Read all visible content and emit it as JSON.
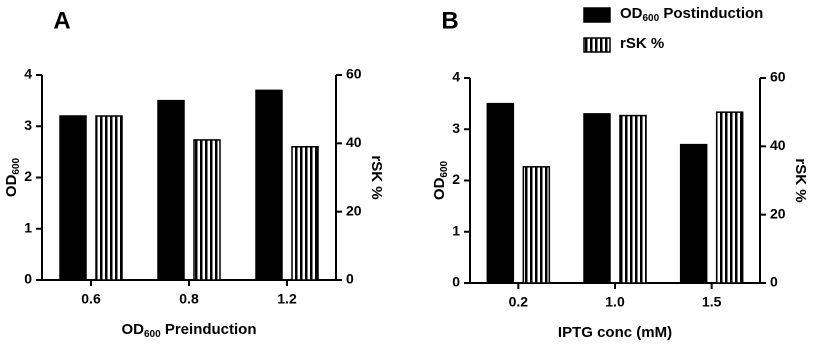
{
  "chart_data": [
    {
      "type": "bar",
      "panel": "A",
      "categories": [
        "0.6",
        "0.8",
        "1.2"
      ],
      "xlabel": [
        "OD",
        "600",
        " Preinduction"
      ],
      "ylabel": [
        "OD",
        "600"
      ],
      "y2label": "rSK %",
      "ylim": [
        0,
        4
      ],
      "yticks": [
        0,
        1,
        2,
        3,
        4
      ],
      "y2lim": [
        0,
        60
      ],
      "y2ticks": [
        0,
        20,
        40,
        60
      ],
      "series": [
        {
          "color": "#000000",
          "values": [
            3.2,
            3.5,
            3.7
          ]
        },
        {
          "color": "#000000",
          "hatch": "vertical",
          "axis": "y2",
          "values": [
            48,
            41,
            39
          ]
        }
      ]
    },
    {
      "type": "bar",
      "panel": "B",
      "categories": [
        "0.2",
        "1.0",
        "1.5"
      ],
      "xlabel": [
        "IPTG conc (mM)"
      ],
      "ylabel": [
        "OD",
        "600"
      ],
      "y2label": "rSK %",
      "ylim": [
        0,
        4
      ],
      "yticks": [
        0,
        1,
        2,
        3,
        4
      ],
      "y2lim": [
        0,
        60
      ],
      "y2ticks": [
        0,
        20,
        40,
        60
      ],
      "legend": "top-right",
      "series": [
        {
          "name": [
            "OD",
            "600",
            " Postinduction"
          ],
          "color": "#000000",
          "values": [
            3.5,
            3.3,
            2.7
          ]
        },
        {
          "name": [
            "rSK %"
          ],
          "color": "#000000",
          "hatch": "vertical",
          "axis": "y2",
          "values": [
            34,
            49,
            50
          ]
        }
      ]
    }
  ]
}
